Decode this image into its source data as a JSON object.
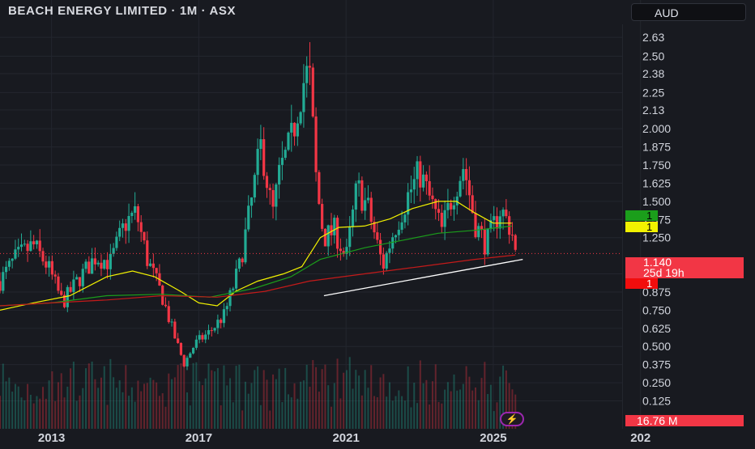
{
  "header": {
    "title": "BEACH ENERGY LIMITED · 1M · ASX",
    "currency": "AUD"
  },
  "badges": {
    "green_label": "1",
    "yellow_label": "1",
    "red_label": "1"
  },
  "price_label": {
    "price": "1.140",
    "countdown": "25d 19h"
  },
  "volume_label": "16.76 M",
  "flash_icon": "lightning-icon",
  "colors": {
    "background": "#181a20",
    "up": "#22ab94",
    "down": "#f23645",
    "ma_fast": "#f2f200",
    "ma_mid": "#1b9e1b",
    "ma_slow": "#c41a1a",
    "trendline": "#ffffff"
  },
  "chart_data": {
    "type": "candlestick",
    "title": "BEACH ENERGY LIMITED · 1M · ASX",
    "price_axis_ticks": [
      "2.63",
      "2.50",
      "2.38",
      "2.25",
      "2.13",
      "2.000",
      "1.875",
      "1.750",
      "1.625",
      "1.500",
      "1.375",
      "1.250",
      "1.000",
      "0.875",
      "0.750",
      "0.625",
      "0.500",
      "0.375",
      "0.250",
      "0.125"
    ],
    "time_axis_ticks": [
      "2013",
      "2017",
      "2021",
      "2025",
      "202"
    ],
    "ylim": [
      0.1,
      2.72
    ],
    "xlim": [
      2011.6,
      2028.5
    ],
    "last_price": 1.14,
    "grid": true,
    "ohlc_anchors": [
      {
        "t": 2011.6,
        "c": 0.95
      },
      {
        "t": 2012.0,
        "c": 1.1
      },
      {
        "t": 2012.5,
        "c": 1.2
      },
      {
        "t": 2012.9,
        "c": 1.05
      },
      {
        "t": 2013.3,
        "c": 0.8
      },
      {
        "t": 2013.7,
        "c": 0.95
      },
      {
        "t": 2014.2,
        "c": 1.12
      },
      {
        "t": 2014.6,
        "c": 1.08
      },
      {
        "t": 2015.0,
        "c": 1.35
      },
      {
        "t": 2015.3,
        "c": 1.42
      },
      {
        "t": 2015.6,
        "c": 1.1
      },
      {
        "t": 2016.0,
        "c": 0.85
      },
      {
        "t": 2016.3,
        "c": 0.6
      },
      {
        "t": 2016.6,
        "c": 0.38
      },
      {
        "t": 2016.9,
        "c": 0.52
      },
      {
        "t": 2017.3,
        "c": 0.6
      },
      {
        "t": 2017.7,
        "c": 0.72
      },
      {
        "t": 2018.1,
        "c": 1.05
      },
      {
        "t": 2018.4,
        "c": 1.45
      },
      {
        "t": 2018.7,
        "c": 1.9
      },
      {
        "t": 2019.0,
        "c": 1.4
      },
      {
        "t": 2019.2,
        "c": 1.7
      },
      {
        "t": 2019.5,
        "c": 1.9
      },
      {
        "t": 2019.8,
        "c": 2.3
      },
      {
        "t": 2020.0,
        "c": 2.4
      },
      {
        "t": 2020.2,
        "c": 1.6
      },
      {
        "t": 2020.4,
        "c": 1.25
      },
      {
        "t": 2020.7,
        "c": 1.3
      },
      {
        "t": 2021.0,
        "c": 1.1
      },
      {
        "t": 2021.3,
        "c": 1.6
      },
      {
        "t": 2021.6,
        "c": 1.45
      },
      {
        "t": 2022.0,
        "c": 1.05
      },
      {
        "t": 2022.3,
        "c": 1.3
      },
      {
        "t": 2022.7,
        "c": 1.55
      },
      {
        "t": 2023.0,
        "c": 1.7
      },
      {
        "t": 2023.3,
        "c": 1.5
      },
      {
        "t": 2023.6,
        "c": 1.3
      },
      {
        "t": 2023.9,
        "c": 1.55
      },
      {
        "t": 2024.2,
        "c": 1.75
      },
      {
        "t": 2024.5,
        "c": 1.35
      },
      {
        "t": 2024.8,
        "c": 1.2
      },
      {
        "t": 2025.2,
        "c": 1.45
      },
      {
        "t": 2025.5,
        "c": 1.3
      },
      {
        "t": 2025.6,
        "c": 1.14
      }
    ],
    "moving_averages": [
      {
        "points": [
          [
            2011.6,
            0.75
          ],
          [
            2012.5,
            0.8
          ],
          [
            2013.5,
            0.85
          ],
          [
            2014.5,
            0.98
          ],
          [
            2015.2,
            1.02
          ],
          [
            2015.8,
            0.98
          ],
          [
            2016.5,
            0.88
          ],
          [
            2017.0,
            0.8
          ],
          [
            2017.5,
            0.78
          ],
          [
            2018.0,
            0.88
          ],
          [
            2018.6,
            0.95
          ],
          [
            2019.3,
            1.0
          ],
          [
            2019.8,
            1.05
          ],
          [
            2020.3,
            1.25
          ],
          [
            2020.8,
            1.32
          ],
          [
            2021.5,
            1.33
          ],
          [
            2022.2,
            1.38
          ],
          [
            2022.8,
            1.45
          ],
          [
            2023.5,
            1.5
          ],
          [
            2024.0,
            1.5
          ],
          [
            2024.5,
            1.42
          ],
          [
            2025.0,
            1.35
          ],
          [
            2025.5,
            1.35
          ]
        ]
      },
      {
        "points": [
          [
            2011.6,
            0.78
          ],
          [
            2013.0,
            0.8
          ],
          [
            2014.5,
            0.85
          ],
          [
            2016.0,
            0.86
          ],
          [
            2017.3,
            0.84
          ],
          [
            2018.5,
            0.9
          ],
          [
            2019.5,
            0.98
          ],
          [
            2020.3,
            1.1
          ],
          [
            2021.5,
            1.18
          ],
          [
            2022.5,
            1.23
          ],
          [
            2023.5,
            1.28
          ],
          [
            2024.5,
            1.3
          ],
          [
            2025.5,
            1.33
          ]
        ]
      },
      {
        "points": [
          [
            2011.6,
            0.78
          ],
          [
            2013.0,
            0.8
          ],
          [
            2014.5,
            0.82
          ],
          [
            2016.0,
            0.85
          ],
          [
            2017.5,
            0.84
          ],
          [
            2018.8,
            0.88
          ],
          [
            2020.0,
            0.95
          ],
          [
            2021.5,
            1.0
          ],
          [
            2023.0,
            1.05
          ],
          [
            2024.5,
            1.1
          ],
          [
            2025.6,
            1.13
          ]
        ]
      }
    ],
    "trendline": [
      [
        2020.4,
        0.85
      ],
      [
        2025.8,
        1.1
      ]
    ],
    "volume_axis_max": 1
  }
}
